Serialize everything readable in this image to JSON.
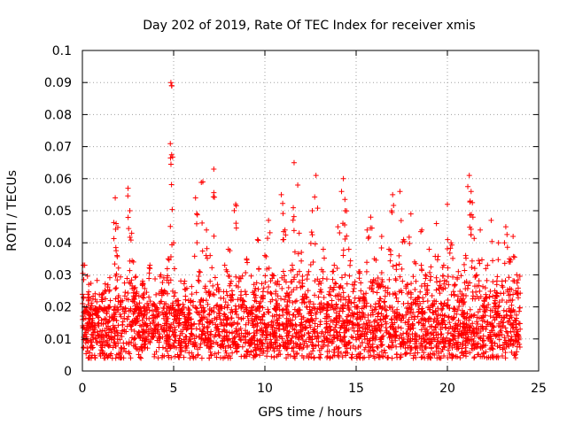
{
  "chart_data": {
    "type": "scatter",
    "title": "Day 202 of 2019, Rate Of TEC Index for receiver xmis",
    "xlabel": "GPS time / hours",
    "ylabel": "ROTI / TECUs",
    "xlim": [
      0,
      25
    ],
    "ylim": [
      0,
      0.1
    ],
    "xticks": [
      "0",
      "5",
      "10",
      "15",
      "20",
      "25"
    ],
    "yticks": [
      "0",
      "0.01",
      "0.02",
      "0.03",
      "0.04",
      "0.05",
      "0.06",
      "0.07",
      "0.08",
      "0.09",
      "0.1"
    ],
    "grid": true,
    "marker": "+",
    "color": "#ff0000",
    "series": [
      {
        "x": [
          0.05,
          0.2,
          0.35,
          0.5,
          0.7,
          0.9,
          1.1,
          1.3,
          1.5,
          1.7,
          1.8,
          1.85,
          1.9,
          2.1,
          2.3,
          2.5,
          2.6,
          2.7,
          2.8,
          2.9,
          3.1,
          3.3,
          3.5,
          3.7,
          3.9,
          4.1,
          4.3,
          4.5,
          4.7,
          4.85,
          4.9,
          5.0,
          5.2,
          5.4,
          5.6,
          5.8,
          6.0,
          6.2,
          6.4,
          6.6,
          6.8,
          7.0,
          7.2,
          7.4,
          7.6,
          7.8,
          8.0,
          8.2,
          8.4,
          8.6,
          8.8,
          9.0,
          9.2,
          9.4,
          9.6,
          9.8,
          10.0,
          10.2,
          10.4,
          10.6,
          10.7,
          10.9,
          11.1,
          11.3,
          11.5,
          11.6,
          11.8,
          12.0,
          12.2,
          12.4,
          12.6,
          12.8,
          13.0,
          13.2,
          13.4,
          13.6,
          13.8,
          14.0,
          14.2,
          14.3,
          14.4,
          14.6,
          14.8,
          15.0,
          15.2,
          15.4,
          15.6,
          15.8,
          16.0,
          16.2,
          16.4,
          16.6,
          16.8,
          17.0,
          17.2,
          17.4,
          17.6,
          17.8,
          18.0,
          18.2,
          18.4,
          18.6,
          18.8,
          19.0,
          19.2,
          19.4,
          19.6,
          19.8,
          20.0,
          20.2,
          20.4,
          20.6,
          20.8,
          21.0,
          21.2,
          21.3,
          21.4,
          21.6,
          21.8,
          22.0,
          22.2,
          22.4,
          22.6,
          22.8,
          23.0,
          23.2,
          23.4,
          23.6,
          23.8
        ],
        "y": [
          0.033,
          0.012,
          0.027,
          0.009,
          0.018,
          0.015,
          0.024,
          0.011,
          0.02,
          0.016,
          0.054,
          0.046,
          0.036,
          0.022,
          0.018,
          0.057,
          0.05,
          0.043,
          0.034,
          0.026,
          0.019,
          0.028,
          0.014,
          0.033,
          0.021,
          0.017,
          0.03,
          0.025,
          0.035,
          0.09,
          0.089,
          0.04,
          0.022,
          0.018,
          0.028,
          0.015,
          0.024,
          0.054,
          0.031,
          0.059,
          0.044,
          0.036,
          0.063,
          0.027,
          0.02,
          0.033,
          0.038,
          0.025,
          0.052,
          0.029,
          0.022,
          0.035,
          0.018,
          0.027,
          0.041,
          0.023,
          0.036,
          0.047,
          0.03,
          0.019,
          0.028,
          0.055,
          0.044,
          0.026,
          0.033,
          0.065,
          0.058,
          0.037,
          0.024,
          0.031,
          0.05,
          0.061,
          0.028,
          0.038,
          0.021,
          0.026,
          0.033,
          0.045,
          0.056,
          0.06,
          0.05,
          0.038,
          0.027,
          0.02,
          0.031,
          0.024,
          0.044,
          0.048,
          0.035,
          0.029,
          0.042,
          0.026,
          0.038,
          0.055,
          0.033,
          0.056,
          0.041,
          0.027,
          0.049,
          0.034,
          0.023,
          0.044,
          0.03,
          0.038,
          0.021,
          0.046,
          0.028,
          0.033,
          0.052,
          0.04,
          0.027,
          0.031,
          0.024,
          0.036,
          0.061,
          0.056,
          0.048,
          0.03,
          0.044,
          0.022,
          0.033,
          0.047,
          0.025,
          0.04,
          0.028,
          0.045,
          0.035,
          0.042,
          0.03
        ],
        "range_x": [
          0,
          24
        ],
        "range_y_typical": [
          0.004,
          0.03
        ]
      }
    ]
  }
}
